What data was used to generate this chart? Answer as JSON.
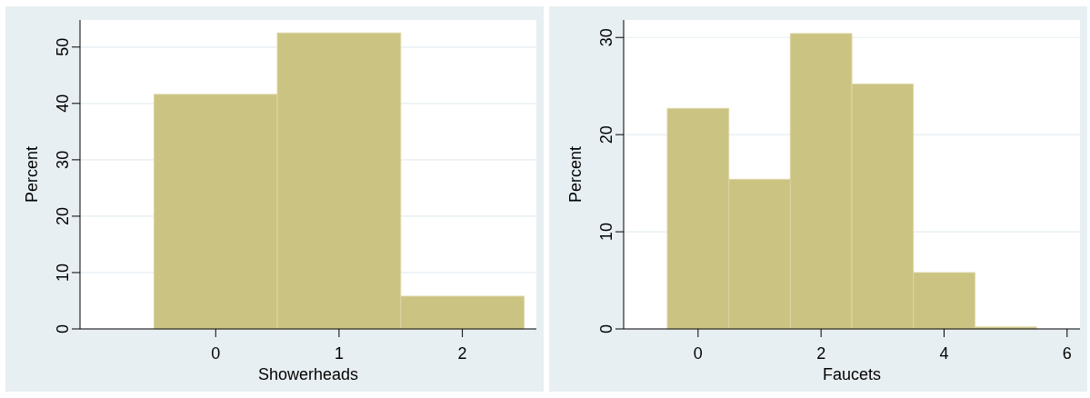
{
  "chart_data": [
    {
      "type": "histogram",
      "xlabel": "Showerheads",
      "ylabel": "Percent",
      "bins": [
        -0.5,
        0.5,
        1.5,
        2.5
      ],
      "values": [
        41.6,
        52.5,
        5.8
      ],
      "color": "#cbc382",
      "xlim": [
        -1.1,
        2.6
      ],
      "xticks": [
        0,
        1,
        2
      ],
      "ylim": [
        0,
        54.8
      ],
      "yticks": [
        0,
        10,
        20,
        30,
        40,
        50
      ],
      "grid": "y"
    },
    {
      "type": "histogram",
      "xlabel": "Faucets",
      "ylabel": "Percent",
      "bins": [
        -0.5,
        0.5,
        1.5,
        2.5,
        3.5,
        4.5,
        5.5
      ],
      "values": [
        22.7,
        15.4,
        30.4,
        25.2,
        5.8,
        0.2
      ],
      "color": "#cbc382",
      "xlim": [
        -1.21,
        6.21
      ],
      "xticks": [
        0,
        2,
        4,
        6
      ],
      "ylim": [
        0,
        31.8
      ],
      "yticks": [
        0,
        10,
        20,
        30
      ],
      "grid": "y"
    }
  ]
}
